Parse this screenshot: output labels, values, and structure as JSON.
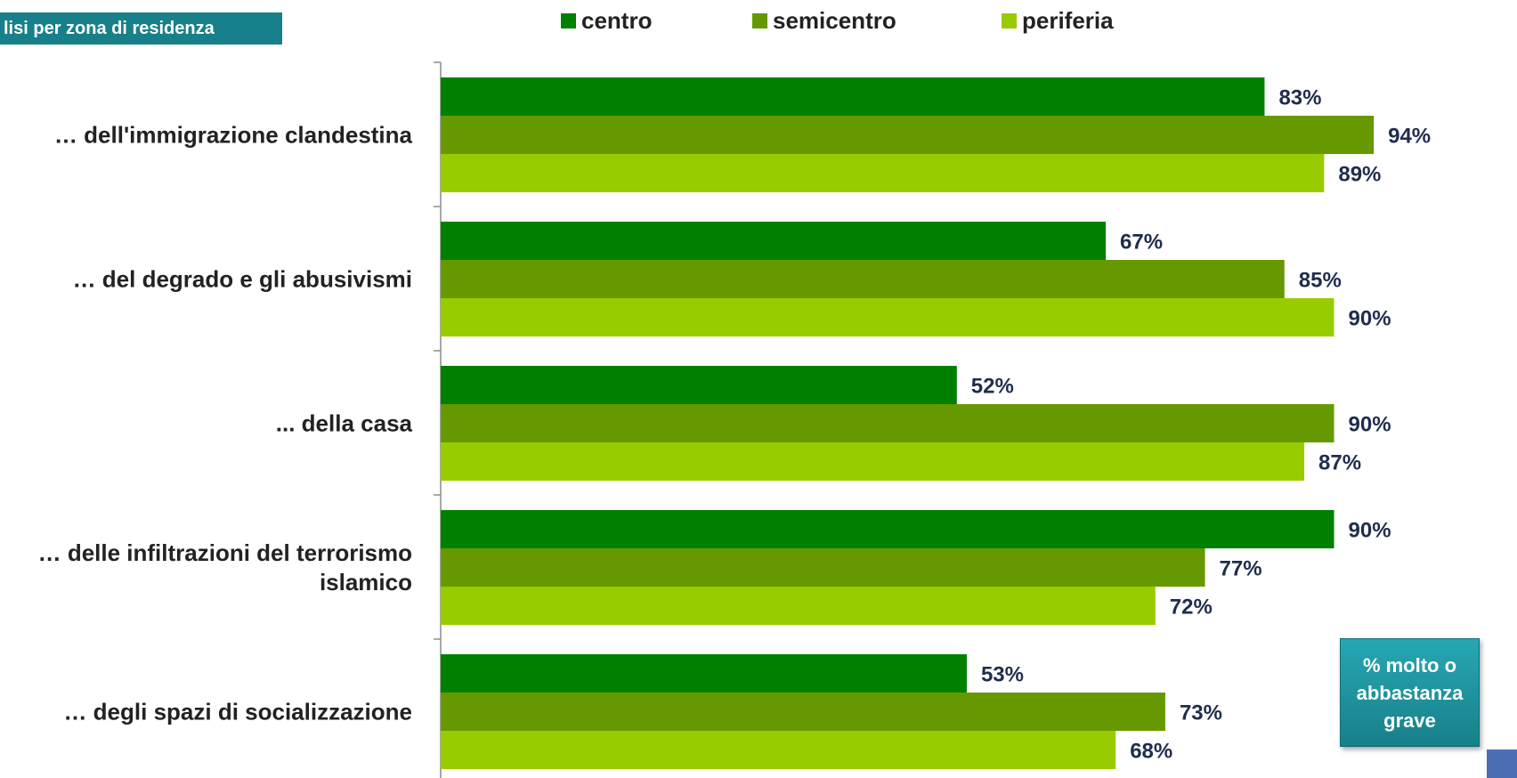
{
  "header": {
    "title": "lisi per zona di residenza"
  },
  "legend": [
    {
      "label": "centro",
      "color": "#008000"
    },
    {
      "label": "semicentro",
      "color": "#669900"
    },
    {
      "label": "periferia",
      "color": "#99cc00"
    }
  ],
  "note": {
    "text": "% molto o abbastanza grave"
  },
  "chart_data": {
    "type": "bar",
    "orientation": "horizontal",
    "categories": [
      "… dell'immigrazione clandestina",
      "… del degrado e gli abusivismi",
      "... della casa",
      "… delle infiltrazioni del terrorismo islamico",
      "… degli spazi di socializzazione"
    ],
    "series": [
      {
        "name": "centro",
        "color": "#008000",
        "values": [
          83,
          67,
          52,
          90,
          53
        ]
      },
      {
        "name": "semicentro",
        "color": "#669900",
        "values": [
          94,
          85,
          90,
          77,
          73
        ]
      },
      {
        "name": "periferia",
        "color": "#99cc00",
        "values": [
          89,
          90,
          87,
          72,
          68
        ]
      }
    ],
    "value_suffix": "%",
    "xlim": [
      0,
      100
    ],
    "legend_position": "top",
    "grid": false
  }
}
